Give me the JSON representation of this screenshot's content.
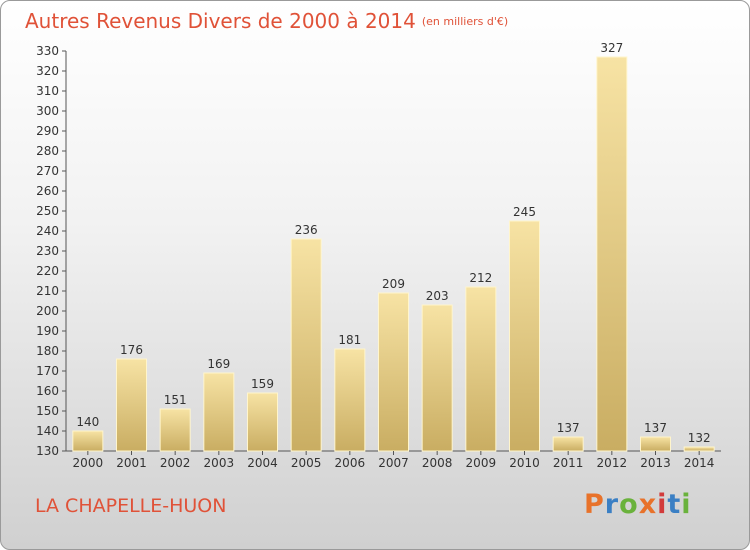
{
  "header": {
    "title": "Autres Revenus Divers de 2000 à 2014",
    "unit": "(en milliers d'€)"
  },
  "footer": {
    "commune": "LA CHAPELLE-HUON",
    "logo_text": "Proxiti"
  },
  "colors": {
    "title": "#e05238",
    "bar_light": "#f7e3a4",
    "bar_dark": "#c9ad62",
    "logo": [
      "#e8722a",
      "#3a7fc4",
      "#6ab23c",
      "#e8722a",
      "#d23b3b",
      "#3a7fc4",
      "#6ab23c"
    ]
  },
  "chart_data": {
    "type": "bar",
    "categories": [
      "2000",
      "2001",
      "2002",
      "2003",
      "2004",
      "2005",
      "2006",
      "2007",
      "2008",
      "2009",
      "2010",
      "2011",
      "2012",
      "2013",
      "2014"
    ],
    "values": [
      140,
      176,
      151,
      169,
      159,
      236,
      181,
      209,
      203,
      212,
      245,
      137,
      327,
      137,
      132
    ],
    "ylim": [
      130,
      330
    ],
    "yticks": [
      130,
      140,
      150,
      160,
      170,
      180,
      190,
      200,
      210,
      220,
      230,
      240,
      250,
      260,
      270,
      280,
      290,
      300,
      310,
      320,
      330
    ],
    "title": "Autres Revenus Divers de 2000 à 2014",
    "ylabel": "",
    "xlabel": "",
    "grid": false
  }
}
